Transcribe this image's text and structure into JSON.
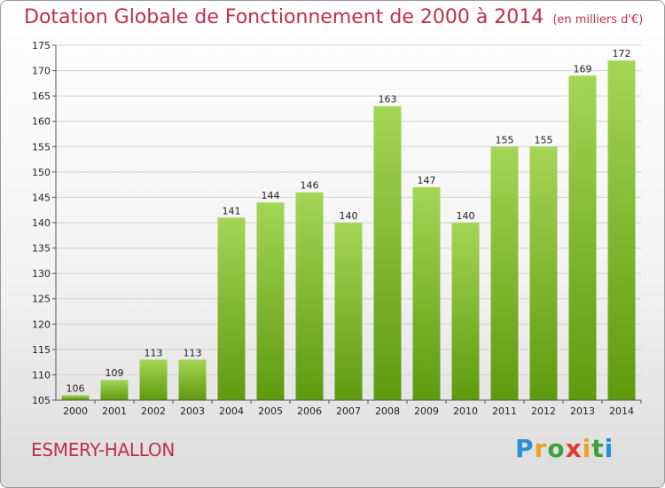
{
  "header": {
    "title": "Dotation Globale de Fonctionnement de 2000 à 2014",
    "subtitle": "(en milliers d'€)"
  },
  "footer": {
    "place": "ESMERY-HALLON",
    "logo": "Proxiti"
  },
  "colors": {
    "title": "#c0304a",
    "bar_light": "#9fd24e",
    "bar_dark": "#5f9a10",
    "grid": "#d0d0d0"
  },
  "chart_data": {
    "type": "bar",
    "title": "Dotation Globale de Fonctionnement de 2000 à 2014",
    "subtitle": "(en milliers d'€)",
    "categories": [
      "2000",
      "2001",
      "2002",
      "2003",
      "2004",
      "2005",
      "2006",
      "2007",
      "2008",
      "2009",
      "2010",
      "2011",
      "2012",
      "2013",
      "2014"
    ],
    "values": [
      106,
      109,
      113,
      113,
      141,
      144,
      146,
      140,
      163,
      147,
      140,
      155,
      155,
      169,
      172
    ],
    "data_labels": [
      "106",
      "109",
      "113",
      "113",
      "141",
      "144",
      "146",
      "140",
      "163",
      "147",
      "140",
      "155",
      "155",
      "169",
      "172"
    ],
    "yticks": [
      "105",
      "110",
      "115",
      "120",
      "125",
      "130",
      "135",
      "140",
      "145",
      "150",
      "155",
      "160",
      "165",
      "170",
      "175"
    ],
    "ylim": [
      105,
      175
    ],
    "xlabel": "",
    "ylabel": "",
    "grid": true,
    "legend": "none"
  }
}
